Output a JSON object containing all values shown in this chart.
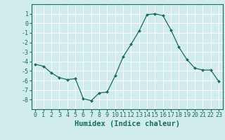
{
  "x": [
    0,
    1,
    2,
    3,
    4,
    5,
    6,
    7,
    8,
    9,
    10,
    11,
    12,
    13,
    14,
    15,
    16,
    17,
    18,
    19,
    20,
    21,
    22,
    23
  ],
  "y": [
    -4.3,
    -4.5,
    -5.2,
    -5.7,
    -5.9,
    -5.8,
    -7.9,
    -8.1,
    -7.3,
    -7.2,
    -5.5,
    -3.5,
    -2.2,
    -0.8,
    0.9,
    1.0,
    0.8,
    -0.7,
    -2.5,
    -3.8,
    -4.7,
    -4.9,
    -4.9,
    -6.1
  ],
  "line_color": "#1a6b5e",
  "marker": "D",
  "marker_size": 2.0,
  "bg_color": "#d0ecec",
  "grid_color": "#ffffff",
  "tick_color": "#1a6b5e",
  "label_color": "#1a6b5e",
  "xlabel": "Humidex (Indice chaleur)",
  "ylim": [
    -9,
    2
  ],
  "xlim": [
    -0.5,
    23.5
  ],
  "yticks": [
    1,
    0,
    -1,
    -2,
    -3,
    -4,
    -5,
    -6,
    -7,
    -8
  ],
  "xticks": [
    0,
    1,
    2,
    3,
    4,
    5,
    6,
    7,
    8,
    9,
    10,
    11,
    12,
    13,
    14,
    15,
    16,
    17,
    18,
    19,
    20,
    21,
    22,
    23
  ],
  "font_size": 6.0,
  "xlabel_font_size": 7.5
}
